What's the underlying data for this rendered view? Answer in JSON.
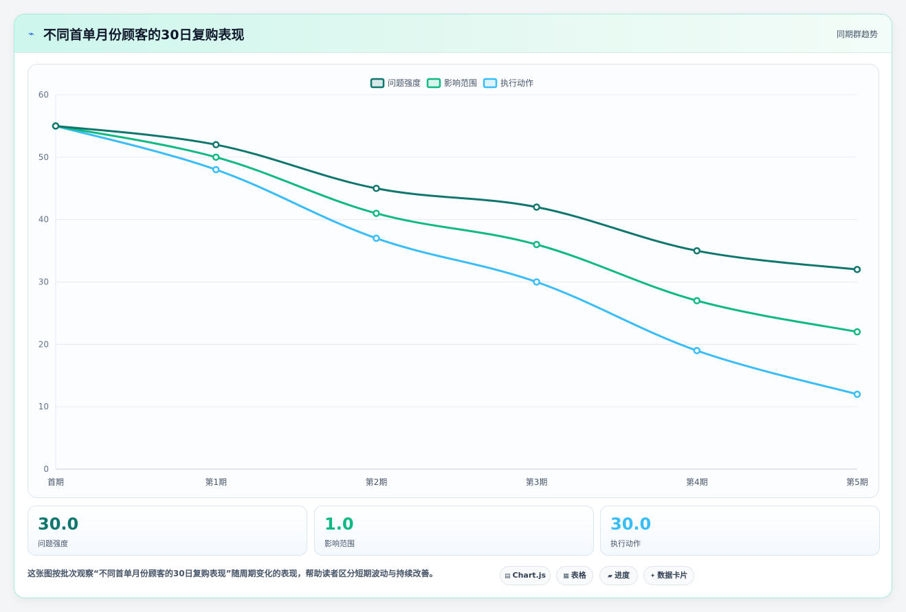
{
  "header": {
    "icon": "lightning-icon",
    "icon_glyph": "⌁",
    "title": "不同首单月份顾客的30日复购表现",
    "right_label": "同期群趋势"
  },
  "chart_data": {
    "type": "line",
    "categories": [
      "首期",
      "第1期",
      "第2期",
      "第3期",
      "第4期",
      "第5期"
    ],
    "series": [
      {
        "name": "问题强度",
        "color": "#0f766e",
        "values": [
          55,
          52,
          45,
          42,
          35,
          32
        ]
      },
      {
        "name": "影响范围",
        "color": "#10b981",
        "values": [
          55,
          50,
          41,
          36,
          27,
          22
        ]
      },
      {
        "name": "执行动作",
        "color": "#38bdf8",
        "values": [
          55,
          48,
          37,
          30,
          19,
          12
        ]
      }
    ],
    "ylim": [
      0,
      60
    ],
    "yticks": [
      0,
      10,
      20,
      30,
      40,
      50,
      60
    ],
    "legend_position": "top-center",
    "grid": true,
    "smooth": true
  },
  "stats": [
    {
      "value": "30.0",
      "label": "问题强度",
      "color": "#0f766e"
    },
    {
      "value": "1.0",
      "label": "影响范围",
      "color": "#10b981"
    },
    {
      "value": "30.0",
      "label": "执行动作",
      "color": "#38bdf8"
    }
  ],
  "footer": {
    "note": "这张图按批次观察“不同首单月份顾客的30日复购表现”随周期变化的表现，帮助读者区分短期波动与持续改善。",
    "tags": [
      {
        "icon": "chart-icon",
        "glyph": "▤",
        "label": "Chart.js"
      },
      {
        "icon": "table-icon",
        "glyph": "▦",
        "label": "表格"
      },
      {
        "icon": "progress-icon",
        "glyph": "▰",
        "label": "进度"
      },
      {
        "icon": "sparkle-icon",
        "glyph": "✦",
        "label": "数据卡片"
      }
    ]
  }
}
